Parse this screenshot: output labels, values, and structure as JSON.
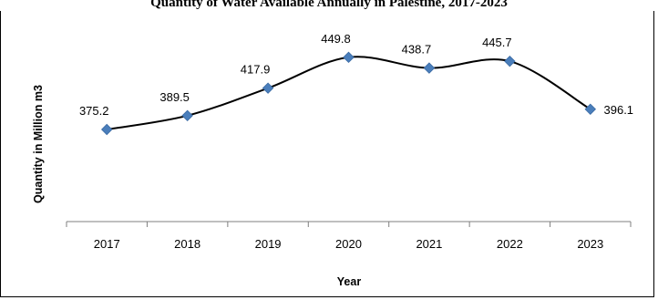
{
  "chart_data": {
    "type": "line",
    "title": "Quantity of Water Available Annually in Palestine, 2017-2023",
    "xlabel": "Year",
    "ylabel": "Quantity in Million m3",
    "categories": [
      "2017",
      "2018",
      "2019",
      "2020",
      "2021",
      "2022",
      "2023"
    ],
    "series": [
      {
        "values": [
          375.2,
          389.5,
          417.9,
          449.8,
          438.7,
          445.7,
          396.1
        ],
        "color": "#4a7ebb"
      }
    ],
    "ylim": [
      280,
      460
    ],
    "grid": false,
    "smooth": true
  }
}
